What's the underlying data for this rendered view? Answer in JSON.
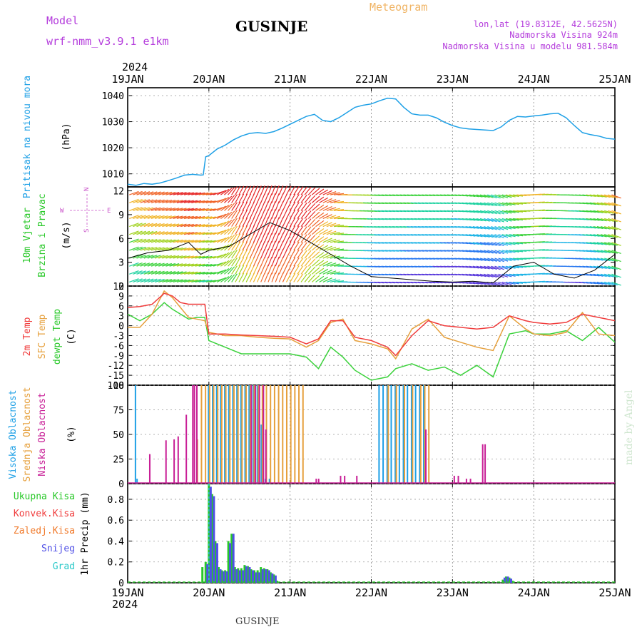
{
  "header": {
    "model_label": "Model",
    "model_name": "wrf-nmm_v3.9.1 e1km",
    "station_title": "GUSINJE",
    "meteogram_label": "Meteogram",
    "lonlat": "lon,lat (19.8312E, 42.5625N)",
    "elevation": "Nadmorska Visina 924m",
    "model_elevation": "Nadmorska Visina u modelu 981.584m",
    "year_top": "2024",
    "year_bottom": "2024",
    "footer_station": "GUSINJE",
    "watermark": "made by Angel"
  },
  "time_axis": {
    "labels": [
      "19JAN",
      "20JAN",
      "21JAN",
      "22JAN",
      "23JAN",
      "24JAN",
      "25JAN"
    ]
  },
  "colors": {
    "pressure": "#1ea0e6",
    "temp2m": "#f03c3c",
    "sfc_temp": "#e6a03c",
    "dewpt": "#3cd23c",
    "cloud_high": "#1ea0e6",
    "cloud_mid": "#e6a03c",
    "cloud_low": "#c81e96",
    "wind_label": "#28c828",
    "wind_compass": "#c850c8",
    "precip_total": "#28c828",
    "precip_conv": "#f03c3c",
    "precip_frozen": "#f07828",
    "precip_snow": "#5050e6",
    "precip_hail": "#28c8c8",
    "header_purple": "#b43cdc",
    "header_orange": "#f0b464"
  },
  "panels": {
    "pressure": {
      "label_1": "Pritisak na nivou mora",
      "label_units": "(hPa)",
      "yticks": [
        "1010",
        "1020",
        "1030",
        "1040"
      ]
    },
    "wind": {
      "label_1": "10m Vjetar",
      "label_2": "Brzina i Pravac",
      "label_units": "(m/s)",
      "yticks": [
        "0",
        "3",
        "6",
        "9",
        "12"
      ],
      "compass_n": "N",
      "compass_s": "S",
      "compass_e": "E",
      "compass_w": "W"
    },
    "temperature": {
      "label_1": "2m Temp",
      "label_2": "SFC Temp",
      "label_3": "dewpt Temp",
      "label_units": "(C)",
      "yticks": [
        "-18",
        "-15",
        "-12",
        "-9",
        "-6",
        "-3",
        "0",
        "3",
        "6",
        "9",
        "12"
      ]
    },
    "cloud": {
      "label_1": "Visoka Oblacnost",
      "label_2": "Srednja Oblacnost",
      "label_3": "Niska Oblacnost",
      "label_units": "(%)",
      "yticks": [
        "0",
        "25",
        "50",
        "75",
        "100"
      ]
    },
    "precip": {
      "legend_total": "Ukupna Kisa",
      "legend_conv": "Konvek.Kisa",
      "legend_frozen": "Zaledj.Kisa",
      "legend_snow": "Snijeg",
      "legend_hail": "Grad",
      "label_units": "1hr Precip (mm)",
      "yticks": [
        "0",
        "0.2",
        "0.4",
        "0.6",
        "0.8"
      ]
    }
  },
  "chart_data": [
    {
      "type": "line",
      "title": "",
      "ylabel": "Pritisak na nivou mora (hPa)",
      "x_unit": "days since 19JAN 00UTC",
      "ylim": [
        1005,
        1043
      ],
      "series": [
        {
          "name": "Pritisak na nivou mora",
          "x": [
            0,
            0.1,
            0.2,
            0.3,
            0.4,
            0.5,
            0.6,
            0.7,
            0.8,
            0.9,
            0.93,
            0.96,
            1.0,
            1.1,
            1.2,
            1.3,
            1.4,
            1.5,
            1.6,
            1.7,
            1.8,
            1.9,
            2.0,
            2.1,
            2.2,
            2.3,
            2.4,
            2.5,
            2.6,
            2.7,
            2.8,
            2.9,
            3.0,
            3.1,
            3.2,
            3.3,
            3.4,
            3.5,
            3.6,
            3.7,
            3.8,
            3.9,
            4.0,
            4.1,
            4.2,
            4.3,
            4.4,
            4.5,
            4.6,
            4.7,
            4.8,
            4.9,
            5.0,
            5.1,
            5.2,
            5.3,
            5.4,
            5.5,
            5.6,
            5.7,
            5.8,
            5.9,
            6.0
          ],
          "values": [
            1006,
            1005.6,
            1006.3,
            1006.0,
            1006.5,
            1007.4,
            1008.4,
            1009.5,
            1009.8,
            1009.5,
            1009.6,
            1016.5,
            1017.0,
            1019.5,
            1021.0,
            1023.0,
            1024.5,
            1025.5,
            1025.8,
            1025.5,
            1026.2,
            1027.5,
            1029.0,
            1030.5,
            1032.0,
            1032.8,
            1030.5,
            1030.0,
            1031.5,
            1033.5,
            1035.5,
            1036.3,
            1036.8,
            1038.0,
            1039.0,
            1038.7,
            1035.5,
            1033.0,
            1032.5,
            1032.5,
            1031.5,
            1029.8,
            1028.5,
            1027.6,
            1027.2,
            1027.0,
            1026.8,
            1026.6,
            1028.0,
            1030.5,
            1032.0,
            1031.8,
            1032.2,
            1032.5,
            1033.0,
            1033.2,
            1031.5,
            1028.5,
            1025.8,
            1025.0,
            1024.5,
            1023.6,
            1023.3
          ]
        }
      ]
    },
    {
      "type": "line",
      "title": "",
      "ylabel": "10m Vjetar Brzina i Pravac (m/s)",
      "x_unit": "days since 19JAN 00UTC",
      "ylim": [
        0,
        12.5
      ],
      "series": [
        {
          "name": "Brzina",
          "x": [
            0,
            0.25,
            0.5,
            0.75,
            0.9,
            1.0,
            1.25,
            1.5,
            1.75,
            2.0,
            2.25,
            2.5,
            2.75,
            3.0,
            3.25,
            3.5,
            3.75,
            4.0,
            4.25,
            4.5,
            4.75,
            5.0,
            5.25,
            5.5,
            5.75,
            6.0
          ],
          "values": [
            3.5,
            4.2,
            4.5,
            5.5,
            4.0,
            4.5,
            5.0,
            6.5,
            8.0,
            7.0,
            5.5,
            4.0,
            2.5,
            1.2,
            1.0,
            0.8,
            0.6,
            0.5,
            0.6,
            0.4,
            2.5,
            3.0,
            1.5,
            1.0,
            2.0,
            4.0
          ]
        },
        {
          "name": "direction_pattern_deg",
          "x": [
            0,
            1.0,
            1.3,
            1.8,
            2.2,
            2.6,
            3.0,
            4.0,
            4.5,
            5.0,
            5.5,
            6.0
          ],
          "values": [
            70,
            80,
            30,
            20,
            40,
            90,
            95,
            95,
            110,
            85,
            95,
            110
          ]
        }
      ]
    },
    {
      "type": "line",
      "title": "",
      "ylabel": "(C)",
      "x_unit": "days since 19JAN 00UTC",
      "ylim": [
        -18,
        12
      ],
      "series": [
        {
          "name": "2m Temp",
          "x": [
            0,
            0.15,
            0.3,
            0.45,
            0.55,
            0.65,
            0.75,
            0.85,
            0.95,
            1.0,
            1.2,
            1.4,
            1.6,
            1.8,
            2.0,
            2.2,
            2.35,
            2.5,
            2.65,
            2.8,
            3.0,
            3.2,
            3.3,
            3.5,
            3.7,
            3.9,
            4.1,
            4.3,
            4.5,
            4.7,
            4.9,
            5.0,
            5.2,
            5.4,
            5.6,
            5.8,
            6.0
          ],
          "values": [
            5.5,
            5.8,
            6.5,
            9.8,
            9.0,
            7.0,
            6.5,
            6.5,
            6.5,
            -2.5,
            -2.5,
            -2.8,
            -3.0,
            -3.2,
            -3.5,
            -5.5,
            -4.0,
            1.5,
            1.5,
            -3.5,
            -4.5,
            -6.5,
            -9.0,
            -3.0,
            1.5,
            0.0,
            -0.5,
            -1.0,
            -0.5,
            3.0,
            1.5,
            1.0,
            0.5,
            1.0,
            3.5,
            2.5,
            1.5
          ]
        },
        {
          "name": "SFC Temp",
          "x": [
            0,
            0.15,
            0.3,
            0.45,
            0.55,
            0.65,
            0.75,
            0.85,
            0.95,
            1.0,
            1.2,
            1.4,
            1.6,
            1.8,
            2.0,
            2.2,
            2.35,
            2.5,
            2.65,
            2.8,
            3.0,
            3.2,
            3.3,
            3.5,
            3.7,
            3.9,
            4.1,
            4.3,
            4.5,
            4.7,
            4.9,
            5.0,
            5.2,
            5.4,
            5.6,
            5.8,
            6.0
          ],
          "values": [
            -0.5,
            -0.5,
            3.5,
            10.5,
            8.5,
            5.5,
            2.5,
            2.0,
            1.5,
            -2.0,
            -3.0,
            -3.0,
            -3.5,
            -3.8,
            -4.0,
            -6.5,
            -4.5,
            1.0,
            2.0,
            -4.5,
            -5.5,
            -7.0,
            -10.0,
            -1.0,
            2.0,
            -3.5,
            -5.0,
            -6.5,
            -7.5,
            3.0,
            -1.0,
            -2.5,
            -3.0,
            -2.0,
            4.0,
            -2.5,
            -3.0
          ]
        },
        {
          "name": "dewpt Temp",
          "x": [
            0,
            0.15,
            0.3,
            0.45,
            0.55,
            0.65,
            0.75,
            0.85,
            0.95,
            1.0,
            1.2,
            1.4,
            1.6,
            1.8,
            2.0,
            2.2,
            2.35,
            2.5,
            2.65,
            2.8,
            3.0,
            3.2,
            3.3,
            3.5,
            3.7,
            3.9,
            4.1,
            4.3,
            4.5,
            4.7,
            4.9,
            5.0,
            5.2,
            5.4,
            5.6,
            5.8,
            6.0
          ],
          "values": [
            3.5,
            1.5,
            3.5,
            7.0,
            5.0,
            3.5,
            2.0,
            2.5,
            2.5,
            -4.5,
            -6.5,
            -8.5,
            -8.5,
            -8.5,
            -8.5,
            -9.5,
            -13.0,
            -6.5,
            -9.5,
            -13.5,
            -16.5,
            -15.5,
            -13.0,
            -11.5,
            -13.5,
            -12.5,
            -15.0,
            -12.0,
            -15.5,
            -2.5,
            -1.5,
            -2.5,
            -2.5,
            -1.5,
            -4.5,
            -0.5,
            -5.0
          ]
        }
      ]
    },
    {
      "type": "bar",
      "title": "",
      "ylabel": "(%)",
      "x_unit": "days since 19JAN 00UTC",
      "ylim": [
        0,
        100
      ],
      "series": [
        {
          "name": "Visoka Oblacnost",
          "x": [
            0.1,
            0.12,
            1.0,
            1.05,
            1.1,
            1.15,
            1.2,
            1.25,
            1.3,
            1.35,
            1.4,
            1.45,
            1.5,
            1.55,
            1.6,
            1.65,
            1.7,
            1.75,
            3.1,
            3.15,
            3.2,
            3.25,
            3.3,
            3.35,
            3.4,
            3.45,
            3.5,
            3.55,
            3.6,
            3.65
          ],
          "values": [
            100,
            5,
            100,
            100,
            100,
            100,
            100,
            100,
            100,
            100,
            100,
            100,
            100,
            100,
            100,
            60,
            5,
            5,
            100,
            100,
            100,
            100,
            100,
            100,
            100,
            100,
            100,
            100,
            100,
            100
          ]
        },
        {
          "name": "Srednja Oblacnost",
          "x": [
            0.85,
            0.9,
            0.95,
            1.0,
            1.05,
            1.1,
            1.15,
            1.2,
            1.25,
            1.3,
            1.35,
            1.4,
            1.45,
            1.5,
            1.55,
            1.6,
            1.65,
            1.7,
            1.75,
            1.8,
            1.85,
            1.9,
            1.95,
            2.0,
            2.05,
            2.1,
            2.15,
            3.2,
            3.3,
            3.4,
            3.5,
            3.6,
            3.65,
            3.7
          ],
          "values": [
            45,
            100,
            100,
            100,
            100,
            100,
            100,
            100,
            100,
            100,
            100,
            100,
            100,
            100,
            100,
            100,
            100,
            100,
            100,
            100,
            100,
            100,
            100,
            100,
            100,
            100,
            100,
            100,
            100,
            100,
            100,
            100,
            100,
            100
          ]
        },
        {
          "name": "Niska Oblacnost",
          "x": [
            0.25,
            0.45,
            0.55,
            0.6,
            0.7,
            0.78,
            0.8,
            0.83,
            1.5,
            1.55,
            1.6,
            1.65,
            1.68,
            2.3,
            2.33,
            2.6,
            2.65,
            2.8,
            3.65,
            4.0,
            4.05,
            4.15,
            4.2,
            4.35,
            4.38
          ],
          "values": [
            30,
            44,
            45,
            48,
            70,
            100,
            100,
            100,
            100,
            100,
            100,
            100,
            55,
            5,
            5,
            8,
            8,
            8,
            55,
            8,
            8,
            5,
            5,
            40,
            40
          ]
        }
      ]
    },
    {
      "type": "bar",
      "title": "",
      "ylabel": "1hr Precip (mm)",
      "x_unit": "days since 19JAN 00UTC",
      "ylim": [
        0,
        0.95
      ],
      "series": [
        {
          "name": "Ukupna Kisa",
          "x": [
            0.92,
            0.96,
            1.0,
            1.04,
            1.08,
            1.12,
            1.16,
            1.2,
            1.24,
            1.28,
            1.32,
            1.36,
            1.4,
            1.44,
            1.48,
            1.52,
            1.56,
            1.6,
            1.64,
            1.68,
            1.72,
            1.76,
            1.8,
            1.84,
            4.62,
            4.66,
            4.7,
            4.74
          ],
          "values": [
            0.15,
            0.2,
            0.95,
            0.85,
            0.4,
            0.15,
            0.12,
            0.12,
            0.4,
            0.47,
            0.15,
            0.14,
            0.14,
            0.17,
            0.16,
            0.13,
            0.12,
            0.12,
            0.15,
            0.14,
            0.13,
            0.1,
            0.08,
            0.02,
            0.03,
            0.06,
            0.05,
            0.02
          ]
        },
        {
          "name": "Snijeg",
          "x": [
            0.96,
            1.0,
            1.04,
            1.08,
            1.12,
            1.16,
            1.2,
            1.24,
            1.28,
            1.32,
            1.36,
            1.4,
            1.44,
            1.48,
            1.52,
            1.56,
            1.6,
            1.64,
            1.68,
            1.72,
            1.76,
            1.8,
            4.62,
            4.66,
            4.7
          ],
          "values": [
            0.18,
            0.92,
            0.83,
            0.38,
            0.13,
            0.11,
            0.11,
            0.38,
            0.47,
            0.13,
            0.12,
            0.12,
            0.16,
            0.15,
            0.12,
            0.1,
            0.1,
            0.13,
            0.13,
            0.12,
            0.09,
            0.07,
            0.05,
            0.06,
            0.04
          ]
        }
      ]
    }
  ]
}
